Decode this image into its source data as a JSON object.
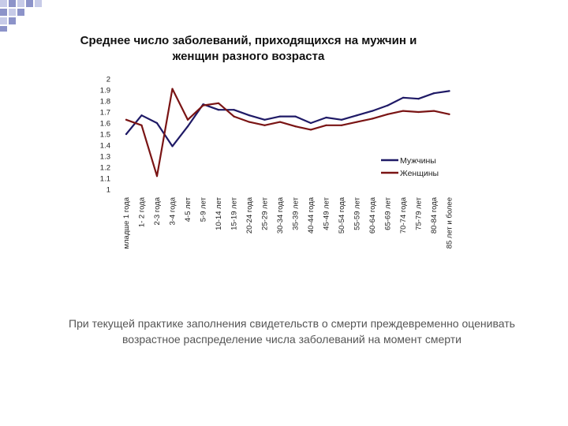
{
  "colors": {
    "male": "#1F1A66",
    "female": "#7A1414",
    "deco_blue": "#8C93C9",
    "deco_light": "#C7CBE8"
  },
  "icons": {
    "corner_decoration": "checker-squares-icon"
  },
  "caption": "При текущей практике заполнения свидетельств о смерти преждевременно оценивать возрастное распределение числа заболеваний на момент смерти",
  "chart_data": {
    "type": "line",
    "title": "Среднее число заболеваний, приходящихся на мужчин и женщин разного возраста",
    "xlabel": "",
    "ylabel": "",
    "ylim": [
      1,
      2
    ],
    "yticks": [
      "1",
      "1.1",
      "1.2",
      "1.3",
      "1.4",
      "1.5",
      "1.6",
      "1.7",
      "1.8",
      "1.9",
      "2"
    ],
    "grid": false,
    "legend": "right",
    "categories": [
      "младше 1 года",
      "1- 2 года",
      "2-3 года",
      "3-4 года",
      "4-5 лет",
      "5-9 лет",
      "10-14 лет",
      "15-19 лет",
      "20-24 года",
      "25-29 лет",
      "30-34 года",
      "35-39 лет",
      "40-44 года",
      "45-49 лет",
      "50-54 года",
      "55-59 лет",
      "60-64 года",
      "65-69 лет",
      "70-74 года",
      "75-79 лет",
      "80-84 года",
      "85 лет и более"
    ],
    "series": [
      {
        "name": "Мужчины",
        "color": "#1F1A66",
        "values": [
          1.5,
          1.67,
          1.6,
          1.39,
          1.57,
          1.77,
          1.72,
          1.72,
          1.67,
          1.63,
          1.66,
          1.66,
          1.6,
          1.65,
          1.63,
          1.67,
          1.71,
          1.76,
          1.83,
          1.82,
          1.87,
          1.89
        ]
      },
      {
        "name": "Женщины",
        "color": "#7A1414",
        "values": [
          1.63,
          1.58,
          1.12,
          1.91,
          1.63,
          1.76,
          1.78,
          1.66,
          1.61,
          1.58,
          1.61,
          1.57,
          1.54,
          1.58,
          1.58,
          1.61,
          1.64,
          1.68,
          1.71,
          1.7,
          1.71,
          1.68
        ]
      }
    ]
  }
}
